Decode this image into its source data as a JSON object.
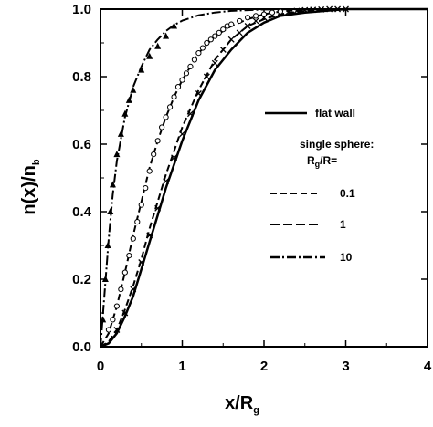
{
  "chart_data": {
    "type": "line",
    "xlabel": "x/R",
    "xlabel_sub": "g",
    "ylabel": "n(x)/n",
    "ylabel_sub": "b",
    "xlim": [
      0,
      4
    ],
    "ylim": [
      0,
      1
    ],
    "x_ticks": [
      0,
      1,
      2,
      3,
      4
    ],
    "x_tick_labels": [
      "0",
      "1",
      "2",
      "3",
      "4"
    ],
    "y_ticks": [
      0,
      0.2,
      0.4,
      0.6,
      0.8,
      1.0
    ],
    "y_tick_labels": [
      "0.0",
      "0.2",
      "0.4",
      "0.6",
      "0.8",
      "1.0"
    ],
    "grid": false,
    "legend_position": "right-middle",
    "series": [
      {
        "name": "flat wall",
        "style": "solid",
        "x": [
          0,
          0.1,
          0.2,
          0.3,
          0.4,
          0.5,
          0.6,
          0.7,
          0.8,
          0.9,
          1.0,
          1.2,
          1.4,
          1.6,
          1.8,
          2.0,
          2.2,
          2.5,
          3.0,
          3.5,
          4.0
        ],
        "y": [
          0,
          0.01,
          0.04,
          0.09,
          0.15,
          0.23,
          0.31,
          0.39,
          0.47,
          0.54,
          0.61,
          0.73,
          0.82,
          0.88,
          0.93,
          0.96,
          0.98,
          0.99,
          1.0,
          1.0,
          1.0
        ]
      },
      {
        "name": "0.1",
        "style": "dashed",
        "x": [
          0,
          0.1,
          0.2,
          0.3,
          0.4,
          0.5,
          0.6,
          0.7,
          0.8,
          0.9,
          1.0,
          1.2,
          1.4,
          1.6,
          1.8,
          2.0,
          2.2,
          2.5,
          3.0,
          3.5,
          4.0
        ],
        "y": [
          0,
          0.015,
          0.05,
          0.11,
          0.18,
          0.26,
          0.35,
          0.43,
          0.51,
          0.58,
          0.65,
          0.76,
          0.85,
          0.91,
          0.95,
          0.97,
          0.985,
          0.995,
          1.0,
          1.0,
          1.0
        ]
      },
      {
        "name": "1",
        "style": "dashed",
        "x": [
          0,
          0.1,
          0.2,
          0.3,
          0.4,
          0.5,
          0.6,
          0.7,
          0.8,
          0.9,
          1.0,
          1.2,
          1.4,
          1.6,
          1.8,
          2.0,
          2.2,
          2.5,
          3.0,
          3.5,
          4.0
        ],
        "y": [
          0,
          0.04,
          0.12,
          0.22,
          0.33,
          0.43,
          0.53,
          0.61,
          0.68,
          0.74,
          0.79,
          0.87,
          0.92,
          0.95,
          0.97,
          0.985,
          0.993,
          0.998,
          1.0,
          1.0,
          1.0
        ]
      },
      {
        "name": "10",
        "style": "dashdot",
        "x": [
          0,
          0.05,
          0.1,
          0.15,
          0.2,
          0.3,
          0.4,
          0.5,
          0.6,
          0.7,
          0.8,
          0.9,
          1.0,
          1.2,
          1.4,
          1.6,
          1.8,
          2.0,
          2.5,
          3.0,
          4.0
        ],
        "y": [
          0,
          0.16,
          0.32,
          0.45,
          0.55,
          0.68,
          0.77,
          0.83,
          0.88,
          0.91,
          0.935,
          0.953,
          0.966,
          0.982,
          0.99,
          0.995,
          0.997,
          0.999,
          1.0,
          1.0,
          1.0
        ]
      },
      {
        "name": "",
        "style": "markers-x",
        "x": [
          0.2,
          0.3,
          0.4,
          0.5,
          0.6,
          0.7,
          0.8,
          0.9,
          1.0,
          1.1,
          1.2,
          1.3,
          1.4,
          1.5,
          1.6,
          1.7,
          1.8,
          1.9,
          2.0,
          2.1,
          2.2,
          2.3,
          2.4,
          2.5,
          2.6,
          2.7,
          2.8,
          2.9,
          3.0
        ],
        "y": [
          0.05,
          0.1,
          0.17,
          0.25,
          0.33,
          0.41,
          0.49,
          0.56,
          0.63,
          0.69,
          0.75,
          0.8,
          0.84,
          0.88,
          0.91,
          0.93,
          0.95,
          0.965,
          0.975,
          0.983,
          0.988,
          0.992,
          0.995,
          0.997,
          0.998,
          0.999,
          1.0,
          1.0,
          1.0
        ]
      },
      {
        "name": "",
        "style": "markers-circle",
        "x": [
          0.1,
          0.15,
          0.2,
          0.25,
          0.3,
          0.35,
          0.4,
          0.45,
          0.5,
          0.55,
          0.6,
          0.65,
          0.7,
          0.75,
          0.8,
          0.85,
          0.9,
          0.95,
          1.0,
          1.05,
          1.1,
          1.15,
          1.2,
          1.25,
          1.3,
          1.35,
          1.4,
          1.45,
          1.5,
          1.55,
          1.6,
          1.7,
          1.8,
          1.9,
          2.0,
          2.1,
          2.2
        ],
        "y": [
          0.05,
          0.08,
          0.12,
          0.17,
          0.22,
          0.27,
          0.32,
          0.37,
          0.42,
          0.47,
          0.52,
          0.57,
          0.61,
          0.65,
          0.68,
          0.71,
          0.74,
          0.77,
          0.79,
          0.81,
          0.83,
          0.85,
          0.87,
          0.885,
          0.9,
          0.91,
          0.92,
          0.93,
          0.94,
          0.95,
          0.955,
          0.965,
          0.975,
          0.98,
          0.985,
          0.99,
          0.993
        ]
      },
      {
        "name": "",
        "style": "markers-triangle",
        "x": [
          0.03,
          0.06,
          0.09,
          0.12,
          0.15,
          0.2,
          0.25,
          0.3,
          0.35,
          0.4,
          0.5,
          0.6,
          0.7,
          0.8,
          0.9
        ],
        "y": [
          0.08,
          0.2,
          0.3,
          0.4,
          0.48,
          0.57,
          0.63,
          0.69,
          0.73,
          0.76,
          0.82,
          0.86,
          0.89,
          0.92,
          0.95
        ]
      }
    ],
    "legend": {
      "flat_wall_label": "flat wall",
      "group_label": "single sphere:",
      "group_sublabel_pre": "R",
      "group_sublabel_sub": "g",
      "group_sublabel_post": "/R=",
      "entries": [
        "0.1",
        "1",
        "10"
      ]
    }
  }
}
